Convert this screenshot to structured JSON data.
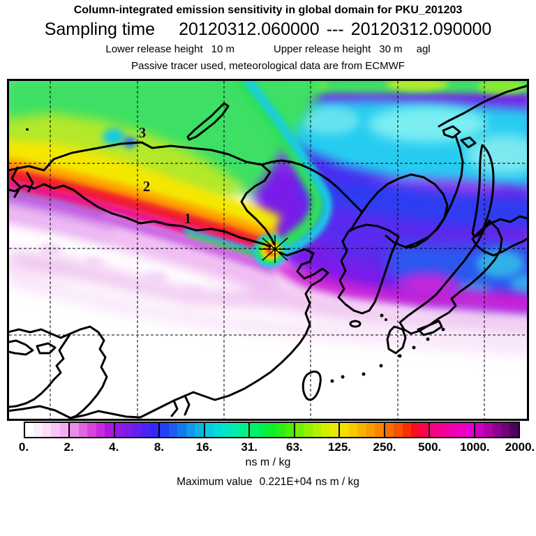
{
  "header": {
    "title": "Column-integrated emission sensitivity in global domain for PKU_201203",
    "sampling": {
      "label": "Sampling time",
      "start": "20120312.060000",
      "separator": "---",
      "end": "20120312.090000"
    },
    "release": {
      "lower_label": "Lower release height",
      "lower_value": "10 m",
      "upper_label": "Upper release height",
      "upper_value": "30 m",
      "suffix": "agl"
    },
    "tracer_note": "Passive tracer used, meteorological data are from ECMWF"
  },
  "map": {
    "trajectory_markers": [
      "3",
      "2",
      "1"
    ],
    "receptor_symbol": "asterisk-star"
  },
  "colorbar": {
    "tick_labels": [
      "0.",
      "2.",
      "4.",
      "8.",
      "16.",
      "31.",
      "63.",
      "125.",
      "250.",
      "500.",
      "1000.",
      "2000."
    ],
    "unit": "ns m / kg",
    "segments": [
      [
        "#ffffff",
        "#fdf0fd",
        "#fbdcfb",
        "#f7c6f7",
        "#f2adf2"
      ],
      [
        "#ea8cea",
        "#e266e2",
        "#d944d9",
        "#c729dd",
        "#ad17e0"
      ],
      [
        "#9318e5",
        "#7c1cea",
        "#641fef",
        "#4a23f3",
        "#3328f6"
      ],
      [
        "#2340f4",
        "#1c5cf2",
        "#1678ee",
        "#1198e8",
        "#0cb4e4"
      ],
      [
        "#08cce0",
        "#06dcd6",
        "#04e6c4",
        "#03ecaa",
        "#02f08c"
      ],
      [
        "#02f06c",
        "#03f04c",
        "#0cf02c",
        "#28f014",
        "#48f006"
      ],
      [
        "#70f000",
        "#94f000",
        "#b4f000",
        "#d2ee00",
        "#e8ea00"
      ],
      [
        "#f6de00",
        "#f8c800",
        "#f8b200",
        "#f89c00",
        "#f88600"
      ],
      [
        "#f86e00",
        "#f85200",
        "#f83000",
        "#f80e1c",
        "#f60452"
      ],
      [
        "#f40280",
        "#f2009a",
        "#f000ae",
        "#ec00c0",
        "#e800ce"
      ],
      [
        "#cc00be",
        "#ae00a6",
        "#8e0090",
        "#70007c",
        "#500060"
      ]
    ]
  },
  "footer": {
    "label": "Maximum value",
    "value": "0.221E+04",
    "unit": "ns m / kg"
  },
  "colors": {
    "coastline": "#000000",
    "plume_core": "#f21a2e",
    "plume_magenta": "#ee0a86",
    "field_violet": "#7a1ee8",
    "field_cyan": "#28ccf0",
    "field_green": "#3ce065",
    "field_yellow": "#f4e800"
  }
}
